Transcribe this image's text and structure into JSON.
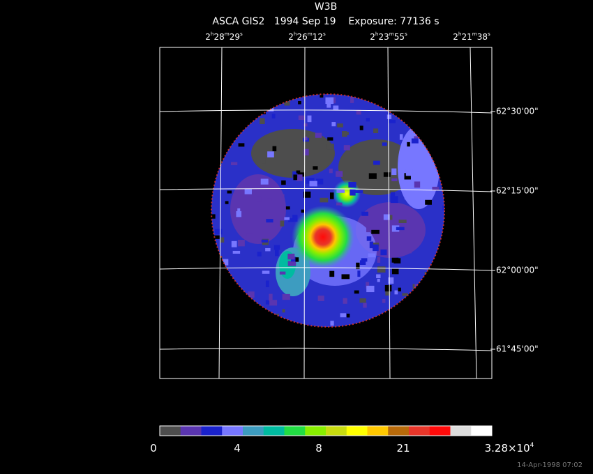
{
  "header": {
    "title": "W3B",
    "subtitle": "ASCA GIS2   1994 Sep 19    Exposure: 77136 s"
  },
  "ra_labels": [
    [
      "2",
      "h",
      "28",
      "m",
      "29",
      "s"
    ],
    [
      "2",
      "h",
      "26",
      "m",
      "12",
      "s"
    ],
    [
      "2",
      "h",
      "23",
      "m",
      "55",
      "s"
    ],
    [
      "2",
      "h",
      "21",
      "m",
      "38",
      "s"
    ]
  ],
  "dec_labels": [
    "62°30'00\"",
    "62°15'00\"",
    "62°00'00\"",
    "61°45'00\""
  ],
  "colorbar": {
    "colors": [
      "#4d4d4d",
      "#5a35b0",
      "#1a22cc",
      "#7777ff",
      "#3d9cc0",
      "#00bba0",
      "#22dd44",
      "#88ee00",
      "#c8dc10",
      "#ffff00",
      "#ffc800",
      "#b86a0a",
      "#e8362a",
      "#ff0a0a",
      "#dddddd",
      "#ffffff"
    ],
    "labels": [
      [
        "0"
      ],
      [
        "4"
      ],
      [
        "8"
      ],
      [
        "21"
      ],
      [
        "3.28×10",
        "4"
      ]
    ]
  },
  "timestamp": "14-Apr-1998 07:02"
}
